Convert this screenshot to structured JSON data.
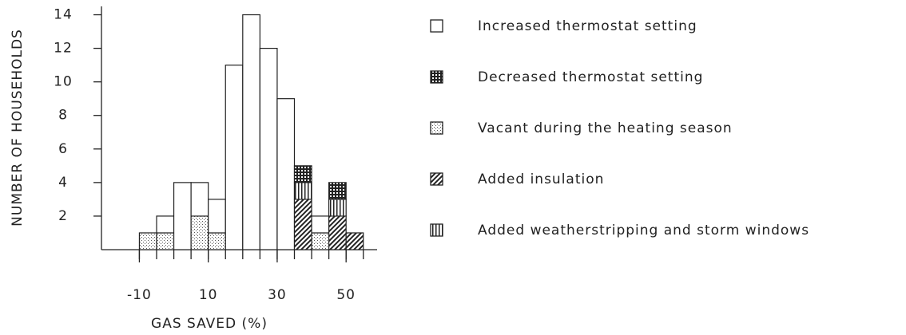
{
  "chart_data": {
    "type": "stacked_histogram",
    "x_label": "GAS SAVED (%)",
    "y_label": "NUMBER OF HOUSEHOLDS",
    "bins": [
      -10,
      -5,
      0,
      5,
      10,
      15,
      20,
      25,
      30,
      35,
      40,
      45,
      50,
      55
    ],
    "xlim": [
      -21,
      59
    ],
    "xticks": [
      -10,
      10,
      30,
      50
    ],
    "ylim": [
      0,
      14.5
    ],
    "yticks": [
      2,
      4,
      6,
      8,
      10,
      12,
      14
    ],
    "legend": "right",
    "series": [
      {
        "name": "Vacant during the heating season",
        "color": "#555",
        "pattern": "dots",
        "values": [
          1,
          1,
          0,
          2,
          1,
          0,
          0,
          0,
          0,
          0,
          1,
          0,
          0
        ]
      },
      {
        "name": "Added insulation",
        "color": "#222",
        "pattern": "diagonal",
        "values": [
          0,
          0,
          0,
          0,
          0,
          0,
          0,
          0,
          0,
          3,
          0,
          2,
          1
        ]
      },
      {
        "name": "Added weatherstripping and storm windows",
        "color": "#222",
        "pattern": "vertical",
        "values": [
          0,
          0,
          0,
          0,
          0,
          0,
          0,
          0,
          0,
          1,
          0,
          1,
          0
        ]
      },
      {
        "name": "Decreased thermostat setting",
        "color": "#222",
        "pattern": "grid",
        "values": [
          0,
          0,
          0,
          0,
          0,
          0,
          0,
          0,
          0,
          1,
          0,
          1,
          0
        ]
      },
      {
        "name": "Increased thermostat setting",
        "color": "#fff",
        "pattern": "none",
        "values": [
          0,
          1,
          4,
          2,
          2,
          11,
          14,
          12,
          9,
          0,
          1,
          0,
          0
        ]
      }
    ],
    "legend_order": [
      4,
      3,
      0,
      1,
      2
    ]
  }
}
